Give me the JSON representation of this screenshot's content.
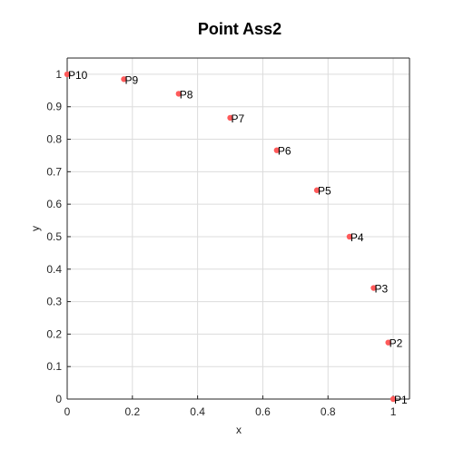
{
  "chart_data": {
    "type": "scatter",
    "title": "Point Ass2",
    "xlabel": "x",
    "ylabel": "y",
    "xlim": [
      0,
      1.05
    ],
    "ylim": [
      0,
      1.05
    ],
    "grid": true,
    "x_ticks": [
      0,
      0.2,
      0.4,
      0.6,
      0.8,
      1
    ],
    "x_tick_labels": [
      "0",
      "0.2",
      "0.4",
      "0.6",
      "0.8",
      "1"
    ],
    "y_ticks": [
      0,
      0.1,
      0.2,
      0.3,
      0.4,
      0.5,
      0.6,
      0.7,
      0.8,
      0.9,
      1
    ],
    "y_tick_labels": [
      "0",
      "0.1",
      "0.2",
      "0.3",
      "0.4",
      "0.5",
      "0.6",
      "0.7",
      "0.8",
      "0.9",
      "1"
    ],
    "marker_color": "#ff5a5a",
    "points": [
      {
        "label": "P1",
        "x": 1.0,
        "y": 0.0
      },
      {
        "label": "P2",
        "x": 0.985,
        "y": 0.174
      },
      {
        "label": "P3",
        "x": 0.94,
        "y": 0.342
      },
      {
        "label": "P4",
        "x": 0.866,
        "y": 0.5
      },
      {
        "label": "P5",
        "x": 0.766,
        "y": 0.643
      },
      {
        "label": "P6",
        "x": 0.643,
        "y": 0.766
      },
      {
        "label": "P7",
        "x": 0.5,
        "y": 0.866
      },
      {
        "label": "P8",
        "x": 0.342,
        "y": 0.94
      },
      {
        "label": "P9",
        "x": 0.174,
        "y": 0.985
      },
      {
        "label": "P10",
        "x": 0.0,
        "y": 1.0
      }
    ]
  }
}
